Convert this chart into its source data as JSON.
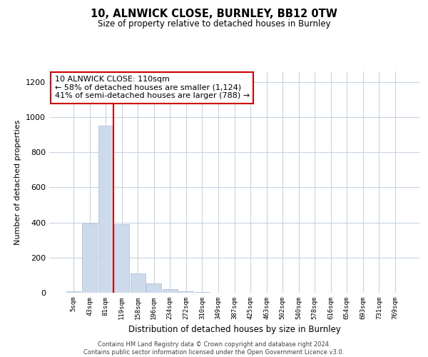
{
  "title": "10, ALNWICK CLOSE, BURNLEY, BB12 0TW",
  "subtitle": "Size of property relative to detached houses in Burnley",
  "xlabel": "Distribution of detached houses by size in Burnley",
  "ylabel": "Number of detached properties",
  "bar_labels": [
    "5sqm",
    "43sqm",
    "81sqm",
    "119sqm",
    "158sqm",
    "196sqm",
    "234sqm",
    "272sqm",
    "310sqm",
    "349sqm",
    "387sqm",
    "425sqm",
    "463sqm",
    "502sqm",
    "540sqm",
    "578sqm",
    "616sqm",
    "654sqm",
    "693sqm",
    "731sqm",
    "769sqm"
  ],
  "bar_heights": [
    10,
    393,
    950,
    390,
    108,
    52,
    22,
    8,
    3,
    0,
    0,
    0,
    0,
    0,
    0,
    0,
    0,
    0,
    0,
    0,
    0
  ],
  "bar_color": "#cddaeb",
  "bar_edge_color": "#aabbd0",
  "vline_x": 2.5,
  "vline_color": "#cc0000",
  "annotation_title": "10 ALNWICK CLOSE: 110sqm",
  "annotation_line1": "← 58% of detached houses are smaller (1,124)",
  "annotation_line2": "41% of semi-detached houses are larger (788) →",
  "annotation_box_color": "#ffffff",
  "annotation_box_edge": "#cc0000",
  "ylim": [
    0,
    1260
  ],
  "yticks": [
    0,
    200,
    400,
    600,
    800,
    1000,
    1200
  ],
  "footer_line1": "Contains HM Land Registry data © Crown copyright and database right 2024.",
  "footer_line2": "Contains public sector information licensed under the Open Government Licence v3.0.",
  "bg_color": "#ffffff",
  "grid_color": "#c8d4e4"
}
